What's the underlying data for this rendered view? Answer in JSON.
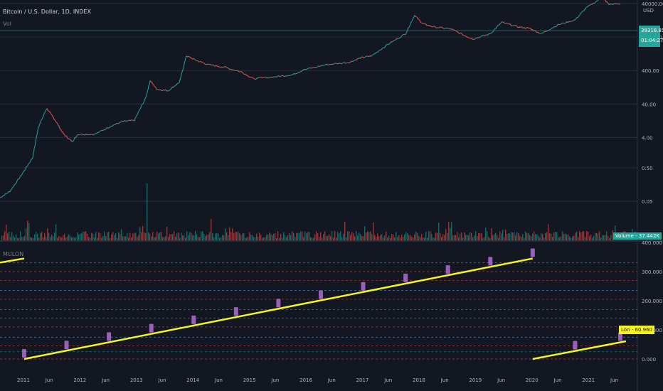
{
  "header": {
    "title": "Bitcoin / U.S. Dollar, 1D, INDEX",
    "volume_label": "Vol",
    "indicator_label": "MULON"
  },
  "tags": {
    "current_price": "39316.85",
    "countdown": "01:04:27",
    "volume": "Volume - 37.442K",
    "lon": "Lon - 60.960"
  },
  "colors": {
    "background": "#131722",
    "grid": "#2a2e39",
    "up": "#26a69a",
    "down": "#ef5350",
    "trend": "#f5f51f",
    "label": "#b36bd6"
  },
  "chart_data": [
    {
      "type": "line",
      "name": "price",
      "scale": "log",
      "currency": "USD",
      "y_ticks": [
        "40000.00",
        "4000.00",
        "400.00",
        "40.00",
        "4.00",
        "0.50",
        "0.05"
      ],
      "x_ticks": [
        "2011",
        "Jun",
        "2012",
        "Jun",
        "2013",
        "Jun",
        "2014",
        "Jun",
        "2015",
        "Jun",
        "2016",
        "Jun",
        "2017",
        "Jun",
        "2018",
        "Jun",
        "2019",
        "Jun",
        "2020",
        "Jun",
        "2021",
        "Jun"
      ],
      "x": [
        2010.6,
        2010.8,
        2011.0,
        2011.2,
        2011.3,
        2011.45,
        2011.6,
        2011.75,
        2011.9,
        2012.0,
        2012.3,
        2012.6,
        2012.8,
        2013.0,
        2013.2,
        2013.28,
        2013.4,
        2013.6,
        2013.8,
        2013.92,
        2014.1,
        2014.3,
        2014.6,
        2014.9,
        2015.1,
        2015.5,
        2015.8,
        2016.0,
        2016.4,
        2016.8,
        2017.0,
        2017.2,
        2017.5,
        2017.8,
        2017.96,
        2018.1,
        2018.3,
        2018.6,
        2018.9,
        2019.0,
        2019.3,
        2019.5,
        2019.8,
        2020.0,
        2020.2,
        2020.5,
        2020.8,
        2021.0,
        2021.28,
        2021.4,
        2021.6
      ],
      "y": [
        0.06,
        0.1,
        0.3,
        1,
        8,
        30,
        13,
        5,
        3,
        5,
        5,
        9,
        12,
        13,
        60,
        200,
        110,
        100,
        180,
        1100,
        800,
        600,
        500,
        360,
        230,
        260,
        300,
        420,
        600,
        700,
        950,
        1100,
        2500,
        5000,
        18000,
        10000,
        8000,
        7000,
        4000,
        3500,
        5000,
        11000,
        8000,
        7200,
        5000,
        9300,
        13000,
        30000,
        60000,
        38000,
        39316.85
      ]
    },
    {
      "type": "bar",
      "name": "volume",
      "volume_label": "Volume - 37.442K"
    },
    {
      "type": "line",
      "name": "MULON",
      "y_ticks": [
        "400.000",
        "300.000",
        "200.000",
        "100.000",
        "0.000"
      ],
      "ylim": [
        -10,
        400
      ],
      "segments": [
        {
          "x": [
            2010.6,
            2011.05
          ],
          "y": [
            330,
            345
          ]
        },
        {
          "x": [
            2011.05,
            2020.05
          ],
          "y": [
            0,
            345
          ]
        },
        {
          "x": [
            2020.05,
            2021.7
          ],
          "y": [
            0,
            60.96
          ]
        }
      ],
      "markers_x": [
        2011.05,
        2011.8,
        2012.55,
        2013.3,
        2014.05,
        2014.8,
        2015.55,
        2016.3,
        2017.05,
        2017.8,
        2018.55,
        2019.3,
        2020.05,
        2020.8,
        2021.6
      ],
      "current_label": "Lon - 60.960"
    }
  ]
}
